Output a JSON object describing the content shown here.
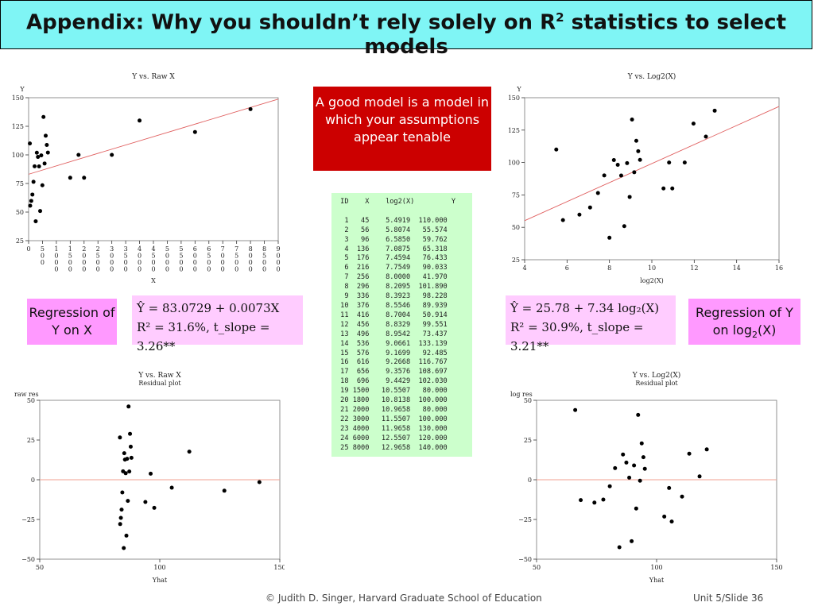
{
  "title": {
    "pre": "Appendix: Why you shouldn’t rely solely on R",
    "sup": "2",
    "post": " statistics to select models"
  },
  "callout": "A good model is a model in which your assumptions appear tenable",
  "labels": {
    "left_reg": "Regression of Y on X",
    "right_reg_pre": "Regression of Y on log",
    "right_reg_sub": "2",
    "right_reg_post": "(X)"
  },
  "equations": {
    "left_line1": "Ŷ = 83.0729 + 0.0073X",
    "left_line2": "R² = 31.6%,   t_slope = 3.26**",
    "right_line1": "Ŷ = 25.78 + 7.34 log₂(X)",
    "right_line2": "R² = 30.9%,   t_slope = 3.21**"
  },
  "table": {
    "headers": [
      "ID",
      "X",
      "log2(X)",
      "Y"
    ],
    "rows": [
      [
        1,
        45,
        "5.4919",
        "110.000"
      ],
      [
        2,
        56,
        "5.8074",
        "55.574"
      ],
      [
        3,
        96,
        "6.5850",
        "59.762"
      ],
      [
        4,
        136,
        "7.0875",
        "65.318"
      ],
      [
        5,
        176,
        "7.4594",
        "76.433"
      ],
      [
        6,
        216,
        "7.7549",
        "90.033"
      ],
      [
        7,
        256,
        "8.0000",
        "41.970"
      ],
      [
        8,
        296,
        "8.2095",
        "101.890"
      ],
      [
        9,
        336,
        "8.3923",
        "98.228"
      ],
      [
        10,
        376,
        "8.5546",
        "89.939"
      ],
      [
        11,
        416,
        "8.7004",
        "50.914"
      ],
      [
        12,
        456,
        "8.8329",
        "99.551"
      ],
      [
        13,
        496,
        "8.9542",
        "73.437"
      ],
      [
        14,
        536,
        "9.0661",
        "133.139"
      ],
      [
        15,
        576,
        "9.1699",
        "92.485"
      ],
      [
        16,
        616,
        "9.2668",
        "116.767"
      ],
      [
        17,
        656,
        "9.3576",
        "108.697"
      ],
      [
        18,
        696,
        "9.4429",
        "102.030"
      ],
      [
        19,
        1500,
        "10.5507",
        "80.000"
      ],
      [
        20,
        1800,
        "10.8138",
        "100.000"
      ],
      [
        21,
        2000,
        "10.9658",
        "80.000"
      ],
      [
        22,
        3000,
        "11.5507",
        "100.000"
      ],
      [
        23,
        4000,
        "11.9658",
        "130.000"
      ],
      [
        24,
        6000,
        "12.5507",
        "120.000"
      ],
      [
        25,
        8000,
        "12.9658",
        "140.000"
      ]
    ]
  },
  "footer": {
    "left": "© Judith D. Singer, Harvard Graduate School of Education",
    "right": "Unit 5/Slide 36"
  },
  "chart_data": [
    {
      "type": "scatter",
      "title": "Y vs. Raw X",
      "xlabel": "X",
      "ylabel": "Y",
      "xlim": [
        0,
        9000
      ],
      "ylim": [
        25,
        150
      ],
      "xticks": [
        0,
        500,
        1000,
        1500,
        2000,
        2500,
        3000,
        3500,
        4000,
        4500,
        5000,
        5500,
        6000,
        6500,
        7000,
        7500,
        8000,
        8500,
        9000
      ],
      "yticks": [
        25,
        50,
        75,
        100,
        125,
        150
      ],
      "x": [
        45,
        56,
        96,
        136,
        176,
        216,
        256,
        296,
        336,
        376,
        416,
        456,
        496,
        536,
        576,
        616,
        656,
        696,
        1500,
        1800,
        2000,
        3000,
        4000,
        6000,
        8000
      ],
      "y": [
        110,
        55.574,
        59.762,
        65.318,
        76.433,
        90.033,
        41.97,
        101.89,
        98.228,
        89.939,
        50.914,
        99.551,
        73.437,
        133.139,
        92.485,
        116.767,
        108.697,
        102.03,
        80,
        100,
        80,
        100,
        130,
        120,
        140
      ],
      "fit": {
        "intercept": 83.0729,
        "slope": 0.0073
      }
    },
    {
      "type": "scatter",
      "title": "Y vs. Log2(X)",
      "xlabel": "log2(X)",
      "ylabel": "Y",
      "xlim": [
        4,
        16
      ],
      "ylim": [
        25,
        150
      ],
      "xticks": [
        4,
        6,
        8,
        10,
        12,
        14,
        16
      ],
      "yticks": [
        25,
        50,
        75,
        100,
        125,
        150
      ],
      "x": [
        5.4919,
        5.8074,
        6.585,
        7.0875,
        7.4594,
        7.7549,
        8.0,
        8.2095,
        8.3923,
        8.5546,
        8.7004,
        8.8329,
        8.9542,
        9.0661,
        9.1699,
        9.2668,
        9.3576,
        9.4429,
        10.5507,
        10.8138,
        10.9658,
        11.5507,
        11.9658,
        12.5507,
        12.9658
      ],
      "y": [
        110,
        55.574,
        59.762,
        65.318,
        76.433,
        90.033,
        41.97,
        101.89,
        98.228,
        89.939,
        50.914,
        99.551,
        73.437,
        133.139,
        92.485,
        116.767,
        108.697,
        102.03,
        80,
        100,
        80,
        100,
        130,
        120,
        140
      ],
      "fit": {
        "intercept": 25.78,
        "slope": 7.34
      }
    },
    {
      "type": "scatter",
      "title": "Y vs. Raw X",
      "subtitle": "Residual plot",
      "xlabel": "Yhat",
      "ylabel": "raw res",
      "xlim": [
        50,
        150
      ],
      "ylim": [
        -50,
        50
      ],
      "xticks": [
        50,
        100,
        150
      ],
      "yticks": [
        -50,
        -25,
        0,
        25,
        50
      ],
      "x": [
        83.4,
        83.5,
        83.8,
        84.1,
        84.4,
        84.7,
        85.0,
        85.2,
        85.5,
        85.8,
        86.1,
        86.4,
        86.7,
        87.0,
        87.3,
        87.6,
        87.9,
        88.2,
        94.0,
        96.2,
        97.7,
        105.0,
        112.3,
        126.9,
        141.5
      ],
      "y": [
        26.6,
        -27.9,
        -24.0,
        -18.8,
        -8.0,
        5.3,
        -43.0,
        16.7,
        12.7,
        4.1,
        -35.2,
        13.2,
        -13.3,
        46.1,
        5.2,
        28.9,
        20.8,
        13.8,
        -14.0,
        3.8,
        -17.7,
        -5.0,
        17.7,
        -6.9,
        -1.5
      ],
      "zero_line": 0
    },
    {
      "type": "scatter",
      "title": "Y vs. Log2(X)",
      "subtitle": "Residual plot",
      "xlabel": "Yhat",
      "ylabel": "log res",
      "xlim": [
        50,
        150
      ],
      "ylim": [
        -50,
        50
      ],
      "xticks": [
        50,
        100,
        150
      ],
      "yticks": [
        -50,
        -25,
        0,
        25,
        50
      ],
      "x": [
        66.1,
        68.4,
        74.1,
        77.8,
        80.5,
        82.7,
        84.5,
        86.0,
        87.4,
        88.6,
        89.6,
        90.6,
        91.5,
        92.3,
        93.1,
        93.8,
        94.5,
        95.1,
        103.2,
        105.2,
        106.3,
        110.6,
        113.6,
        117.9,
        120.9
      ],
      "y": [
        43.9,
        -12.8,
        -14.4,
        -12.5,
        -4.1,
        7.3,
        -42.5,
        15.9,
        10.8,
        1.3,
        -38.7,
        9.0,
        -18.1,
        40.8,
        -0.6,
        22.9,
        14.2,
        6.9,
        -23.2,
        -5.2,
        -26.3,
        -10.6,
        16.4,
        2.1,
        19.1
      ],
      "zero_line": 0
    }
  ]
}
